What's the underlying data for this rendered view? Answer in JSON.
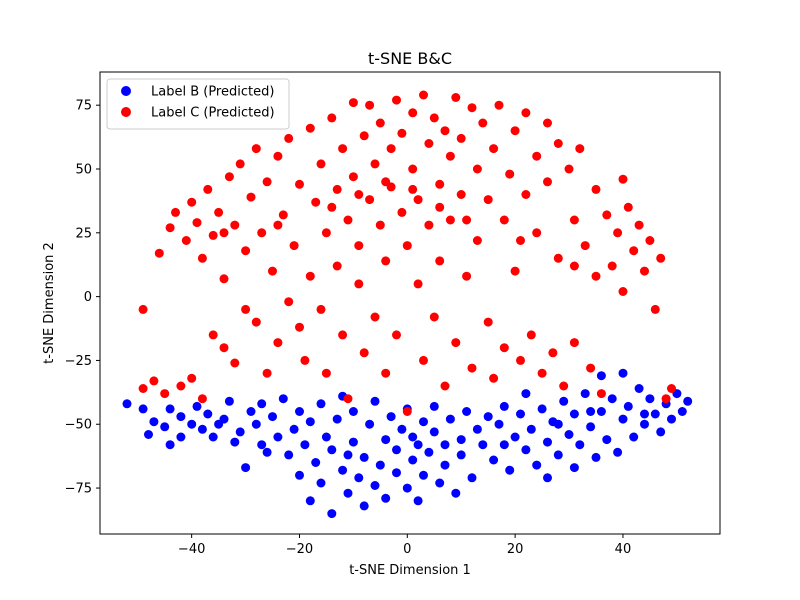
{
  "chart_data": {
    "type": "scatter",
    "title": "t-SNE B&C",
    "xlabel": "t-SNE Dimension 1",
    "ylabel": "t-SNE Dimension 2",
    "xlim": [
      -57,
      58
    ],
    "ylim": [
      -93,
      88
    ],
    "xticks": [
      -40,
      -20,
      0,
      20,
      40
    ],
    "yticks": [
      -75,
      -50,
      -25,
      0,
      25,
      50,
      75
    ],
    "grid": false,
    "legend_position": "top-left",
    "series": [
      {
        "name": "Label B (Predicted)",
        "color": "#0000ff",
        "points": [
          [
            -52,
            -42
          ],
          [
            -49,
            -44
          ],
          [
            -48,
            -54
          ],
          [
            -47,
            -49
          ],
          [
            -45,
            -51
          ],
          [
            -44,
            -44
          ],
          [
            -44,
            -58
          ],
          [
            -42,
            -47
          ],
          [
            -42,
            -55
          ],
          [
            -40,
            -50
          ],
          [
            -39,
            -43
          ],
          [
            -38,
            -52
          ],
          [
            -37,
            -46
          ],
          [
            -36,
            -55
          ],
          [
            -34,
            -48
          ],
          [
            -33,
            -41
          ],
          [
            -32,
            -57
          ],
          [
            -31,
            -53
          ],
          [
            -30,
            -67
          ],
          [
            -29,
            -45
          ],
          [
            -28,
            -50
          ],
          [
            -27,
            -42
          ],
          [
            -26,
            -61
          ],
          [
            -25,
            -47
          ],
          [
            -24,
            -55
          ],
          [
            -23,
            -40
          ],
          [
            -22,
            -62
          ],
          [
            -21,
            -52
          ],
          [
            -20,
            -45
          ],
          [
            -20,
            -70
          ],
          [
            -19,
            -58
          ],
          [
            -18,
            -49
          ],
          [
            -18,
            -80
          ],
          [
            -17,
            -65
          ],
          [
            -16,
            -42
          ],
          [
            -16,
            -73
          ],
          [
            -15,
            -55
          ],
          [
            -14,
            -85
          ],
          [
            -14,
            -60
          ],
          [
            -13,
            -48
          ],
          [
            -12,
            -68
          ],
          [
            -12,
            -39
          ],
          [
            -11,
            -77
          ],
          [
            -10,
            -57
          ],
          [
            -10,
            -45
          ],
          [
            -9,
            -71
          ],
          [
            -8,
            -63
          ],
          [
            -8,
            -82
          ],
          [
            -7,
            -50
          ],
          [
            -6,
            -74
          ],
          [
            -6,
            -41
          ],
          [
            -5,
            -66
          ],
          [
            -4,
            -56
          ],
          [
            -4,
            -79
          ],
          [
            -3,
            -47
          ],
          [
            -2,
            -69
          ],
          [
            -2,
            -60
          ],
          [
            -1,
            -52
          ],
          [
            0,
            -75
          ],
          [
            0,
            -44
          ],
          [
            1,
            -64
          ],
          [
            1,
            -55
          ],
          [
            2,
            -80
          ],
          [
            3,
            -49
          ],
          [
            3,
            -70
          ],
          [
            4,
            -61
          ],
          [
            5,
            -53
          ],
          [
            5,
            -43
          ],
          [
            6,
            -73
          ],
          [
            7,
            -58
          ],
          [
            7,
            -66
          ],
          [
            8,
            -48
          ],
          [
            9,
            -77
          ],
          [
            10,
            -56
          ],
          [
            10,
            -62
          ],
          [
            11,
            -45
          ],
          [
            12,
            -71
          ],
          [
            13,
            -52
          ],
          [
            14,
            -58
          ],
          [
            15,
            -47
          ],
          [
            16,
            -64
          ],
          [
            17,
            -50
          ],
          [
            18,
            -43
          ],
          [
            19,
            -68
          ],
          [
            20,
            -55
          ],
          [
            21,
            -46
          ],
          [
            22,
            -60
          ],
          [
            22,
            -38
          ],
          [
            23,
            -52
          ],
          [
            24,
            -66
          ],
          [
            25,
            -44
          ],
          [
            26,
            -57
          ],
          [
            26,
            -71
          ],
          [
            27,
            -49
          ],
          [
            28,
            -62
          ],
          [
            29,
            -41
          ],
          [
            30,
            -54
          ],
          [
            31,
            -67
          ],
          [
            31,
            -46
          ],
          [
            32,
            -58
          ],
          [
            33,
            -38
          ],
          [
            34,
            -51
          ],
          [
            35,
            -63
          ],
          [
            36,
            -45
          ],
          [
            36,
            -31
          ],
          [
            37,
            -56
          ],
          [
            38,
            -40
          ],
          [
            39,
            -61
          ],
          [
            40,
            -48
          ],
          [
            40,
            -30
          ],
          [
            41,
            -43
          ],
          [
            42,
            -55
          ],
          [
            43,
            -36
          ],
          [
            44,
            -50
          ],
          [
            45,
            -40
          ],
          [
            46,
            -46
          ],
          [
            47,
            -53
          ],
          [
            48,
            -42
          ],
          [
            49,
            -48
          ],
          [
            50,
            -38
          ],
          [
            51,
            -45
          ],
          [
            52,
            -41
          ],
          [
            -35,
            -50
          ],
          [
            -27,
            -58
          ],
          [
            -11,
            -62
          ],
          [
            2,
            -58
          ],
          [
            18,
            -58
          ],
          [
            28,
            -50
          ],
          [
            34,
            -45
          ],
          [
            44,
            -46
          ]
        ]
      },
      {
        "name": "Label C (Predicted)",
        "color": "#ff0000",
        "points": [
          [
            -49,
            -5
          ],
          [
            -49,
            -36
          ],
          [
            -47,
            -33
          ],
          [
            -46,
            17
          ],
          [
            -45,
            -38
          ],
          [
            -44,
            27
          ],
          [
            -43,
            33
          ],
          [
            -42,
            -35
          ],
          [
            -41,
            22
          ],
          [
            -40,
            37
          ],
          [
            -40,
            -32
          ],
          [
            -39,
            29
          ],
          [
            -38,
            15
          ],
          [
            -38,
            -40
          ],
          [
            -37,
            42
          ],
          [
            -36,
            24
          ],
          [
            -36,
            -15
          ],
          [
            -35,
            33
          ],
          [
            -34,
            7
          ],
          [
            -34,
            -20
          ],
          [
            -33,
            47
          ],
          [
            -32,
            28
          ],
          [
            -32,
            -26
          ],
          [
            -31,
            52
          ],
          [
            -30,
            18
          ],
          [
            -30,
            -5
          ],
          [
            -29,
            39
          ],
          [
            -28,
            58
          ],
          [
            -28,
            -10
          ],
          [
            -27,
            25
          ],
          [
            -26,
            45
          ],
          [
            -26,
            -30
          ],
          [
            -25,
            10
          ],
          [
            -24,
            55
          ],
          [
            -24,
            -18
          ],
          [
            -23,
            32
          ],
          [
            -22,
            -2
          ],
          [
            -22,
            62
          ],
          [
            -21,
            20
          ],
          [
            -20,
            -12
          ],
          [
            -20,
            44
          ],
          [
            -19,
            -25
          ],
          [
            -18,
            8
          ],
          [
            -18,
            66
          ],
          [
            -17,
            37
          ],
          [
            -16,
            -5
          ],
          [
            -16,
            52
          ],
          [
            -15,
            25
          ],
          [
            -15,
            -30
          ],
          [
            -14,
            70
          ],
          [
            -13,
            12
          ],
          [
            -13,
            42
          ],
          [
            -12,
            -15
          ],
          [
            -12,
            58
          ],
          [
            -11,
            30
          ],
          [
            -11,
            -40
          ],
          [
            -10,
            76
          ],
          [
            -10,
            47
          ],
          [
            -9,
            5
          ],
          [
            -9,
            20
          ],
          [
            -8,
            63
          ],
          [
            -8,
            -22
          ],
          [
            -7,
            38
          ],
          [
            -7,
            75
          ],
          [
            -6,
            52
          ],
          [
            -6,
            -8
          ],
          [
            -5,
            28
          ],
          [
            -5,
            68
          ],
          [
            -4,
            14
          ],
          [
            -4,
            -30
          ],
          [
            -3,
            58
          ],
          [
            -3,
            43
          ],
          [
            -2,
            77
          ],
          [
            -2,
            -15
          ],
          [
            -1,
            33
          ],
          [
            -1,
            64
          ],
          [
            0,
            20
          ],
          [
            0,
            -45
          ],
          [
            1,
            72
          ],
          [
            1,
            50
          ],
          [
            2,
            5
          ],
          [
            2,
            38
          ],
          [
            3,
            79
          ],
          [
            3,
            -25
          ],
          [
            4,
            60
          ],
          [
            4,
            28
          ],
          [
            5,
            -8
          ],
          [
            5,
            70
          ],
          [
            6,
            44
          ],
          [
            6,
            14
          ],
          [
            7,
            -35
          ],
          [
            7,
            65
          ],
          [
            8,
            55
          ],
          [
            8,
            30
          ],
          [
            9,
            78
          ],
          [
            9,
            -18
          ],
          [
            10,
            40
          ],
          [
            10,
            62
          ],
          [
            11,
            8
          ],
          [
            12,
            74
          ],
          [
            12,
            -28
          ],
          [
            13,
            50
          ],
          [
            13,
            22
          ],
          [
            14,
            68
          ],
          [
            15,
            -10
          ],
          [
            15,
            38
          ],
          [
            16,
            58
          ],
          [
            16,
            -32
          ],
          [
            17,
            75
          ],
          [
            18,
            30
          ],
          [
            18,
            -20
          ],
          [
            19,
            48
          ],
          [
            20,
            65
          ],
          [
            20,
            10
          ],
          [
            21,
            -25
          ],
          [
            22,
            40
          ],
          [
            22,
            72
          ],
          [
            23,
            -15
          ],
          [
            24,
            55
          ],
          [
            24,
            25
          ],
          [
            25,
            -30
          ],
          [
            26,
            68
          ],
          [
            26,
            45
          ],
          [
            27,
            -22
          ],
          [
            28,
            60
          ],
          [
            28,
            15
          ],
          [
            29,
            -35
          ],
          [
            30,
            50
          ],
          [
            31,
            30
          ],
          [
            31,
            -18
          ],
          [
            32,
            58
          ],
          [
            33,
            20
          ],
          [
            34,
            -28
          ],
          [
            35,
            42
          ],
          [
            35,
            8
          ],
          [
            36,
            -38
          ],
          [
            37,
            32
          ],
          [
            38,
            12
          ],
          [
            39,
            25
          ],
          [
            40,
            46
          ],
          [
            40,
            2
          ],
          [
            41,
            35
          ],
          [
            42,
            18
          ],
          [
            43,
            28
          ],
          [
            44,
            10
          ],
          [
            45,
            22
          ],
          [
            46,
            -5
          ],
          [
            47,
            15
          ],
          [
            48,
            -40
          ],
          [
            49,
            -36
          ],
          [
            -9,
            40
          ],
          [
            -4,
            45
          ],
          [
            1,
            42
          ],
          [
            6,
            35
          ],
          [
            -14,
            35
          ],
          [
            11,
            30
          ],
          [
            -24,
            28
          ],
          [
            -34,
            25
          ],
          [
            21,
            22
          ],
          [
            31,
            12
          ]
        ]
      }
    ]
  }
}
